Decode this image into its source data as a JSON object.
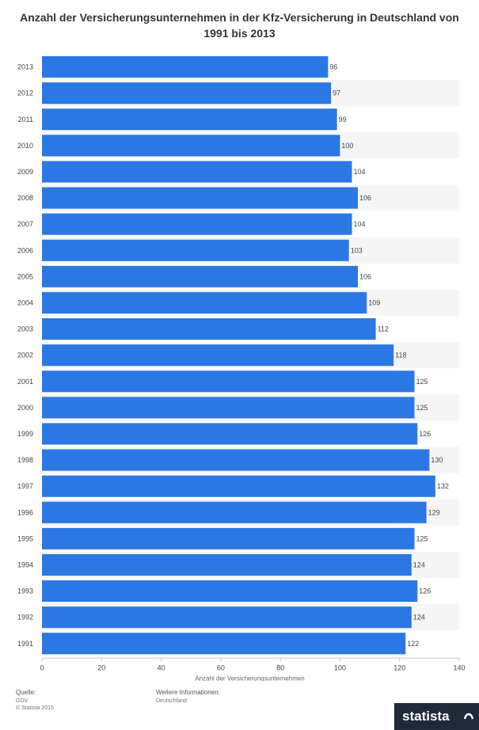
{
  "chart_data": {
    "type": "bar",
    "orientation": "horizontal",
    "title": "Anzahl der Versicherungsunternehmen in der Kfz-Versicherung in Deutschland von 1991 bis 2013",
    "xlabel": "Anzahl der Versicherungsunternehmen",
    "ylabel": "",
    "categories": [
      "2013",
      "2012",
      "2011",
      "2010",
      "2009",
      "2008",
      "2007",
      "2006",
      "2005",
      "2004",
      "2003",
      "2002",
      "2001",
      "2000",
      "1999",
      "1998",
      "1997",
      "1996",
      "1995",
      "1994",
      "1993",
      "1992",
      "1991"
    ],
    "values": [
      96,
      97,
      99,
      100,
      104,
      106,
      104,
      103,
      106,
      109,
      112,
      118,
      125,
      125,
      126,
      130,
      132,
      129,
      125,
      124,
      126,
      124,
      122
    ],
    "xlim": [
      0,
      140
    ],
    "xticks": [
      0,
      20,
      40,
      60,
      80,
      100,
      120,
      140
    ],
    "bar_color": "#2b78e4",
    "grid": false,
    "legend": "none"
  },
  "footer": {
    "source_label": "Quelle:",
    "source_value": "GDV",
    "copyright": "© Statista 2015",
    "info_label": "Weitere Informationen:",
    "info_value": "Deutschland"
  },
  "logo": {
    "text": "statista"
  }
}
